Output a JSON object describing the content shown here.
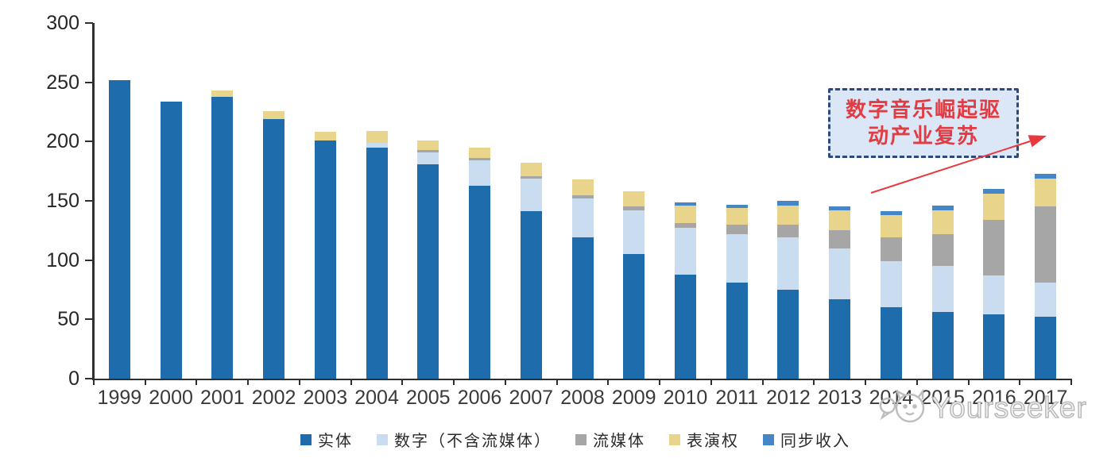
{
  "chart_data": {
    "type": "bar",
    "subtype": "stacked",
    "title": "",
    "xlabel": "",
    "ylabel": "",
    "categories": [
      "1999",
      "2000",
      "2001",
      "2002",
      "2003",
      "2004",
      "2005",
      "2006",
      "2007",
      "2008",
      "2009",
      "2010",
      "2011",
      "2012",
      "2013",
      "2014",
      "2015",
      "2016",
      "2017"
    ],
    "series": [
      {
        "key": "physical",
        "name": "实体",
        "color": "#1f6cac",
        "values": [
          252,
          234,
          238,
          219,
          201,
          195,
          181,
          163,
          141,
          119,
          105,
          88,
          81,
          75,
          67,
          60,
          56,
          54,
          52
        ]
      },
      {
        "key": "digital",
        "name": "数字（不含流媒体）",
        "color": "#c9dcf0",
        "values": [
          0,
          0,
          0,
          0,
          0,
          4,
          10,
          21,
          28,
          33,
          37,
          39,
          41,
          44,
          43,
          39,
          39,
          33,
          29
        ]
      },
      {
        "key": "streaming",
        "name": "流媒体",
        "color": "#a6a6a6",
        "values": [
          0,
          0,
          0,
          0,
          0,
          0,
          2,
          2,
          2,
          3,
          3,
          4,
          8,
          11,
          15,
          20,
          27,
          47,
          64
        ]
      },
      {
        "key": "performance",
        "name": "表演权",
        "color": "#e8d48b",
        "values": [
          0,
          0,
          5,
          7,
          7,
          10,
          8,
          9,
          11,
          13,
          13,
          15,
          14,
          16,
          17,
          19,
          20,
          22,
          24
        ]
      },
      {
        "key": "sync",
        "name": "同步收入",
        "color": "#4586c6",
        "values": [
          0,
          0,
          0,
          0,
          0,
          0,
          0,
          0,
          0,
          0,
          0,
          3,
          3,
          4,
          3,
          3,
          4,
          4,
          4
        ]
      }
    ],
    "ylim": [
      0,
      300
    ],
    "yticks": [
      0,
      50,
      100,
      150,
      200,
      250,
      300
    ],
    "grid": false,
    "legend_position": "bottom"
  },
  "annotation": {
    "line1": "数字音乐崛起驱",
    "line2": "动产业复苏",
    "text_color": "#e23b41",
    "border_color": "#2e4a7c",
    "fill_color": "#dbe7f6",
    "arrow_color": "#e8383d"
  },
  "watermark": {
    "text": "Yourseeker",
    "logo": "chat-cat-icon",
    "color": "#b3b3b3"
  },
  "axis": {
    "line_color": "#2f2f2f",
    "label_color": "#3a3a3a"
  }
}
